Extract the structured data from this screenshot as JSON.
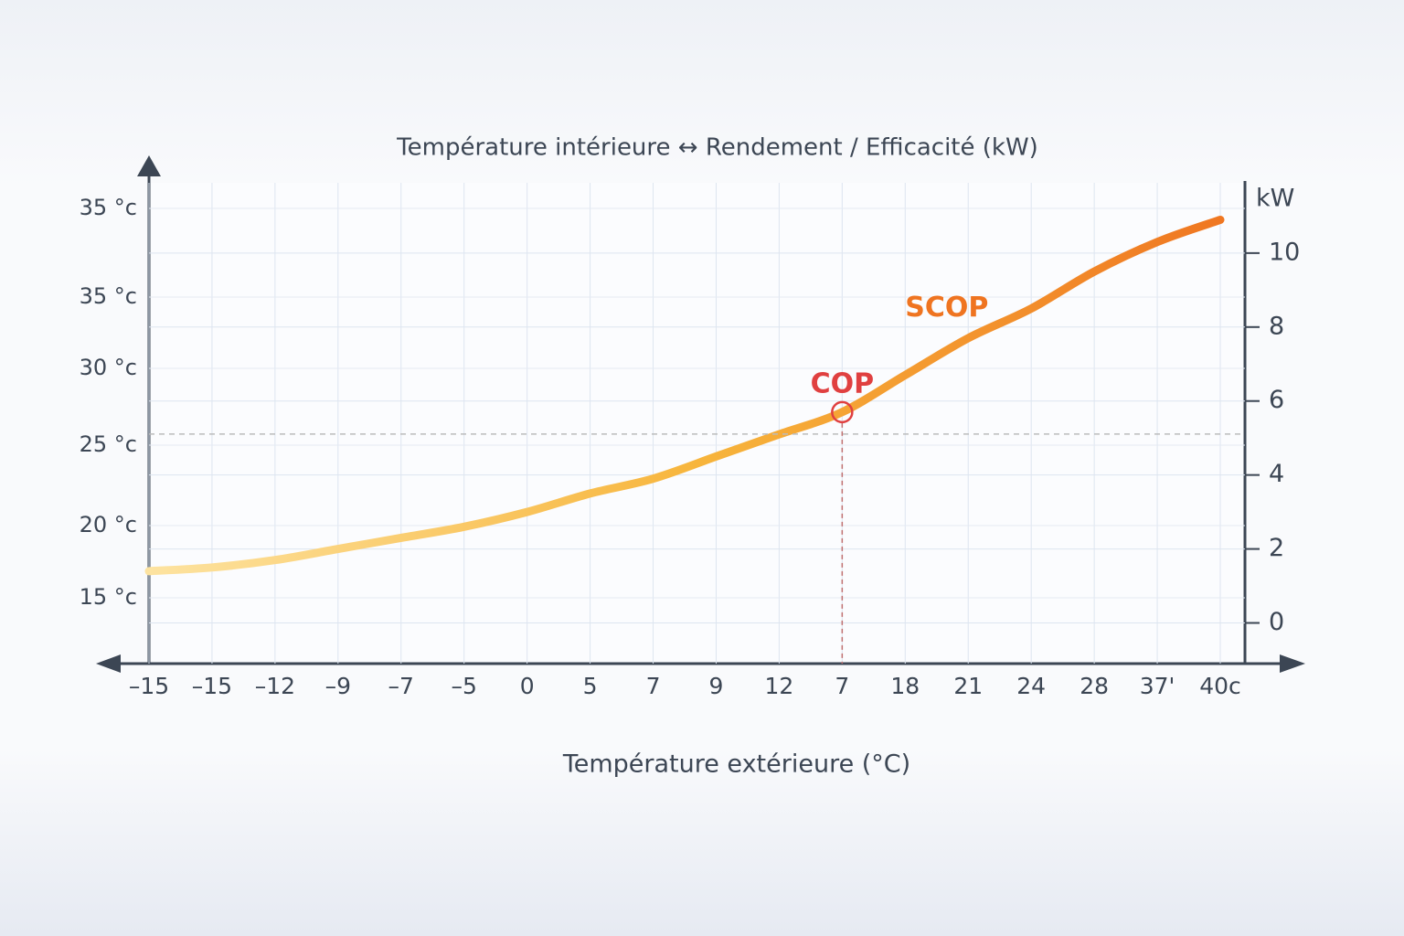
{
  "chart_data": {
    "type": "line",
    "title": "Température intérieure ↔ Rendement / Efficacité (kW)",
    "x_label": "Température extérieure (°C)",
    "y2_unit": "kW",
    "left_axis_labels": [
      "35 °c",
      "35 °c",
      "30 °c",
      "25 °c",
      "20 °c",
      "15 °c"
    ],
    "categories": [
      "–15",
      "–15",
      "–12",
      "–9",
      "–7",
      "–5",
      "0",
      "5",
      "7",
      "9",
      "12",
      "7",
      "18",
      "21",
      "24",
      "28",
      "37'",
      "40c"
    ],
    "series": [
      {
        "name": "SCOP",
        "colors": [
          "#fde3a0",
          "#f7b53c",
          "#ef7420"
        ],
        "axis": "y2",
        "values": [
          1.4,
          1.5,
          1.7,
          2.0,
          2.3,
          2.6,
          3.0,
          3.5,
          3.9,
          4.5,
          5.1,
          5.7,
          6.7,
          7.7,
          8.5,
          9.5,
          10.3,
          10.9
        ]
      }
    ],
    "annotations": [
      {
        "text": "COP",
        "color": "#e04040",
        "at": 11
      }
    ],
    "y2lim": [
      -1.1,
      11.9
    ],
    "y2ticks": [
      0,
      2,
      4,
      6,
      8,
      10
    ],
    "grid": true
  }
}
